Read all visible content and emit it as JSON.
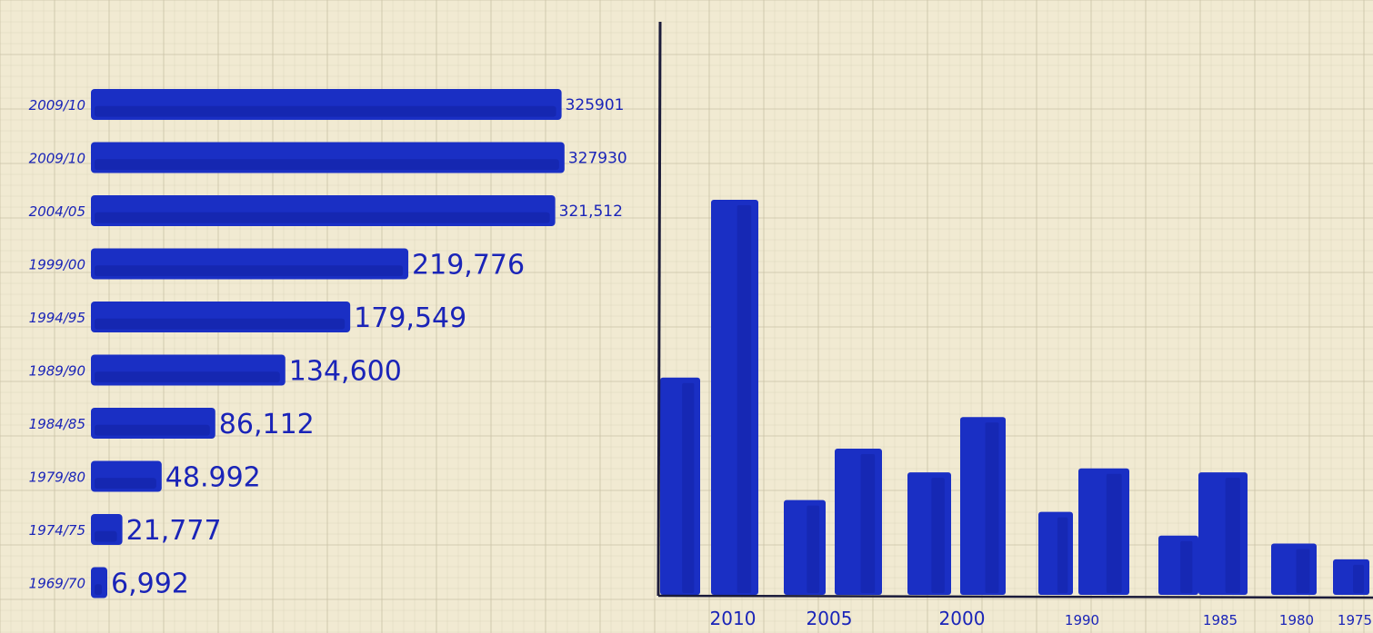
{
  "colors": {
    "paper": "#f1ead2",
    "grid": "#c9c2a6",
    "bar": "#1a2fc4",
    "bar_dark": "#0e1a8f",
    "ink": "#1a24b8",
    "axis": "#1b1b3a"
  },
  "chart_data": [
    {
      "type": "bar",
      "orientation": "horizontal",
      "title": "",
      "xlabel": "",
      "ylabel": "",
      "categories": [
        "2009/10",
        "2009/10",
        "2004/05",
        "1999/00",
        "1994/95",
        "1989/90",
        "1984/85",
        "1979/80",
        "1974/75",
        "1969/70"
      ],
      "values": [
        325901,
        327930,
        321512,
        219776,
        179549,
        134600,
        86112,
        48992,
        21777,
        6992
      ],
      "value_labels": [
        "325901",
        "327930",
        "321,512",
        "219,776",
        "179,549",
        "134,600",
        "86,112",
        "48.992",
        "21,777",
        "6,992"
      ],
      "xlim": [
        0,
        340000
      ],
      "grid": true,
      "legend": "none"
    },
    {
      "type": "bar",
      "orientation": "vertical",
      "title": "",
      "xlabel": "",
      "ylabel": "",
      "tick_labels": [
        "2010",
        "2005",
        "2000",
        "1990",
        "1985",
        "1980",
        "1975"
      ],
      "values": [
        55,
        100,
        24,
        37,
        31,
        45,
        21,
        32,
        15,
        31,
        13,
        9
      ],
      "ylim": [
        0,
        115
      ],
      "grid": true,
      "legend": "none"
    }
  ]
}
